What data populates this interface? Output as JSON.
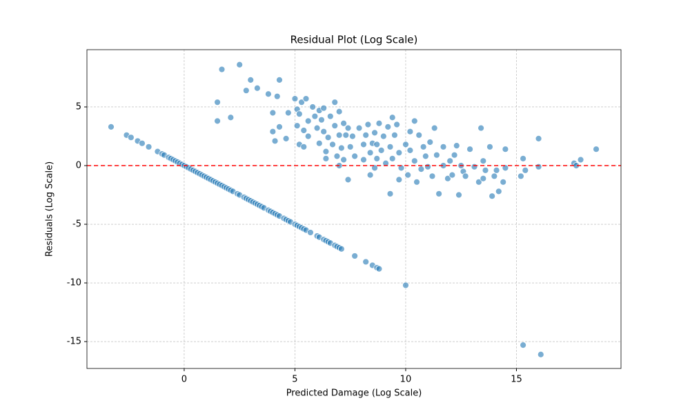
{
  "chart_data": {
    "type": "scatter",
    "title": "Residual Plot (Log Scale)",
    "x_label": "Predicted Damage (Log Scale)",
    "y_label": "Residuals (Log Scale)",
    "x": [
      -3.3,
      -2.6,
      -2.4,
      -2.1,
      -1.9,
      -1.6,
      -1.2,
      -1.0,
      -0.9,
      -0.7,
      -0.6,
      -0.5,
      -0.4,
      -0.3,
      -0.2,
      -0.1,
      0,
      0.1,
      0.2,
      0.3,
      0.4,
      0.5,
      0.6,
      0.7,
      0.8,
      0.9,
      1.0,
      1.1,
      1.2,
      1.3,
      1.4,
      1.5,
      1.6,
      1.7,
      1.8,
      1.9,
      2.0,
      2.1,
      2.2,
      2.4,
      2.5,
      2.7,
      2.8,
      2.9,
      3.0,
      3.1,
      3.2,
      3.3,
      3.4,
      3.5,
      3.6,
      3.8,
      3.9,
      4.0,
      4.1,
      4.2,
      4.3,
      4.5,
      4.6,
      4.7,
      4.8,
      5.0,
      5.1,
      5.2,
      5.3,
      5.4,
      5.5,
      5.7,
      6.0,
      6.1,
      6.3,
      6.4,
      6.5,
      6.6,
      6.8,
      6.9,
      7.0,
      7.1,
      7.7,
      8.2,
      8.5,
      8.7,
      8.8,
      1.5,
      1.5,
      1.7,
      2.1,
      2.5,
      3.0,
      2.8,
      3.3,
      3.8,
      4.0,
      4.2,
      4.3,
      4.0,
      4.1,
      4.3,
      4.6,
      4.7,
      5.0,
      5.1,
      5.1,
      5.2,
      5.2,
      5.3,
      5.4,
      5.5,
      5.6,
      5.4,
      5.6,
      5.8,
      5.9,
      6.0,
      6.1,
      6.1,
      6.2,
      6.3,
      6.3,
      6.4,
      6.4,
      6.5,
      6.6,
      6.7,
      6.8,
      6.8,
      6.9,
      7.0,
      7.0,
      7.0,
      7.1,
      7.2,
      7.2,
      7.3,
      7.4,
      7.4,
      7.5,
      7.6,
      7.7,
      7.9,
      8.1,
      8.1,
      8.2,
      8.3,
      8.4,
      8.4,
      8.5,
      8.6,
      8.6,
      8.7,
      8.7,
      8.8,
      8.9,
      9.0,
      9.1,
      9.2,
      9.3,
      9.3,
      9.4,
      9.4,
      9.5,
      9.6,
      9.7,
      9.7,
      9.8,
      10.0,
      10.1,
      10.2,
      10.2,
      10.4,
      10.4,
      10.5,
      10.6,
      10.7,
      10.8,
      10.9,
      11.0,
      11.1,
      11.2,
      11.3,
      11.4,
      11.5,
      11.7,
      11.7,
      11.9,
      12.0,
      12.1,
      12.2,
      12.3,
      12.4,
      12.5,
      12.6,
      12.7,
      12.9,
      13.1,
      13.3,
      13.4,
      13.5,
      13.5,
      13.6,
      13.8,
      13.9,
      14.0,
      14.1,
      14.2,
      14.4,
      14.5,
      14.5,
      15.2,
      15.3,
      15.4,
      16.0,
      16.0,
      17.6,
      17.7,
      17.9,
      18.6,
      10.0,
      15.3,
      16.1
    ],
    "values": [
      3.3,
      2.6,
      2.4,
      2.1,
      1.9,
      1.6,
      1.2,
      1.0,
      0.9,
      0.7,
      0.6,
      0.5,
      0.4,
      0.3,
      0.2,
      0.1,
      0,
      -0.1,
      -0.2,
      -0.3,
      -0.4,
      -0.5,
      -0.6,
      -0.7,
      -0.8,
      -0.9,
      -1.0,
      -1.1,
      -1.2,
      -1.3,
      -1.4,
      -1.5,
      -1.6,
      -1.7,
      -1.8,
      -1.9,
      -2.0,
      -2.1,
      -2.2,
      -2.4,
      -2.5,
      -2.7,
      -2.8,
      -2.9,
      -3.0,
      -3.1,
      -3.2,
      -3.3,
      -3.4,
      -3.5,
      -3.6,
      -3.8,
      -3.9,
      -4.0,
      -4.1,
      -4.2,
      -4.3,
      -4.5,
      -4.6,
      -4.7,
      -4.8,
      -5.0,
      -5.1,
      -5.2,
      -5.3,
      -5.4,
      -5.5,
      -5.7,
      -6.0,
      -6.1,
      -6.3,
      -6.4,
      -6.5,
      -6.6,
      -6.8,
      -6.9,
      -7.0,
      -7.1,
      -7.7,
      -8.2,
      -8.5,
      -8.7,
      -8.8,
      5.4,
      3.8,
      8.2,
      4.1,
      8.6,
      7.3,
      6.4,
      6.6,
      6.1,
      4.5,
      5.9,
      7.3,
      2.9,
      2.1,
      3.3,
      2.3,
      4.5,
      5.7,
      4.8,
      3.4,
      1.8,
      4.4,
      5.4,
      3.0,
      5.7,
      3.8,
      1.6,
      2.5,
      5.0,
      4.2,
      3.2,
      4.7,
      1.9,
      3.9,
      4.9,
      2.9,
      0.6,
      1.2,
      2.4,
      4.2,
      1.8,
      5.4,
      3.4,
      0.8,
      4.6,
      0.0,
      2.6,
      1.5,
      3.6,
      0.5,
      2.6,
      -1.2,
      3.2,
      1.6,
      2.5,
      0.8,
      3.2,
      1.8,
      0.5,
      2.6,
      3.5,
      1.1,
      -0.8,
      1.9,
      -0.2,
      2.8,
      0.6,
      1.8,
      3.6,
      1.3,
      2.5,
      0.2,
      3.3,
      -2.4,
      1.6,
      4.1,
      0.6,
      2.6,
      3.5,
      -1.2,
      1.1,
      -0.2,
      1.8,
      -0.8,
      2.9,
      1.3,
      0.4,
      3.8,
      -1.4,
      2.6,
      -0.3,
      1.6,
      0.8,
      -0.1,
      2.0,
      -0.9,
      3.2,
      0.9,
      -2.4,
      0.0,
      1.6,
      -1.1,
      0.4,
      -0.8,
      0.9,
      1.7,
      -2.5,
      0.0,
      -0.5,
      -0.9,
      1.4,
      -0.1,
      -1.4,
      3.2,
      0.4,
      -1.1,
      -0.4,
      1.6,
      -2.6,
      -0.9,
      -0.4,
      -2.2,
      -1.4,
      1.4,
      -0.2,
      -0.9,
      0.6,
      -0.4,
      2.3,
      -0.1,
      0.2,
      0.0,
      0.5,
      1.4,
      -10.2,
      -15.3,
      -16.1
    ],
    "color": "#1f77b4",
    "xlim": [
      -4.39,
      19.72
    ],
    "ylim": [
      -17.29,
      9.88
    ],
    "xticks": [
      0,
      5,
      10,
      15
    ],
    "yticks": [
      -15,
      -10,
      -5,
      0,
      5
    ],
    "grid": true,
    "hline": {
      "value": 0,
      "color": "#ff0000"
    }
  }
}
